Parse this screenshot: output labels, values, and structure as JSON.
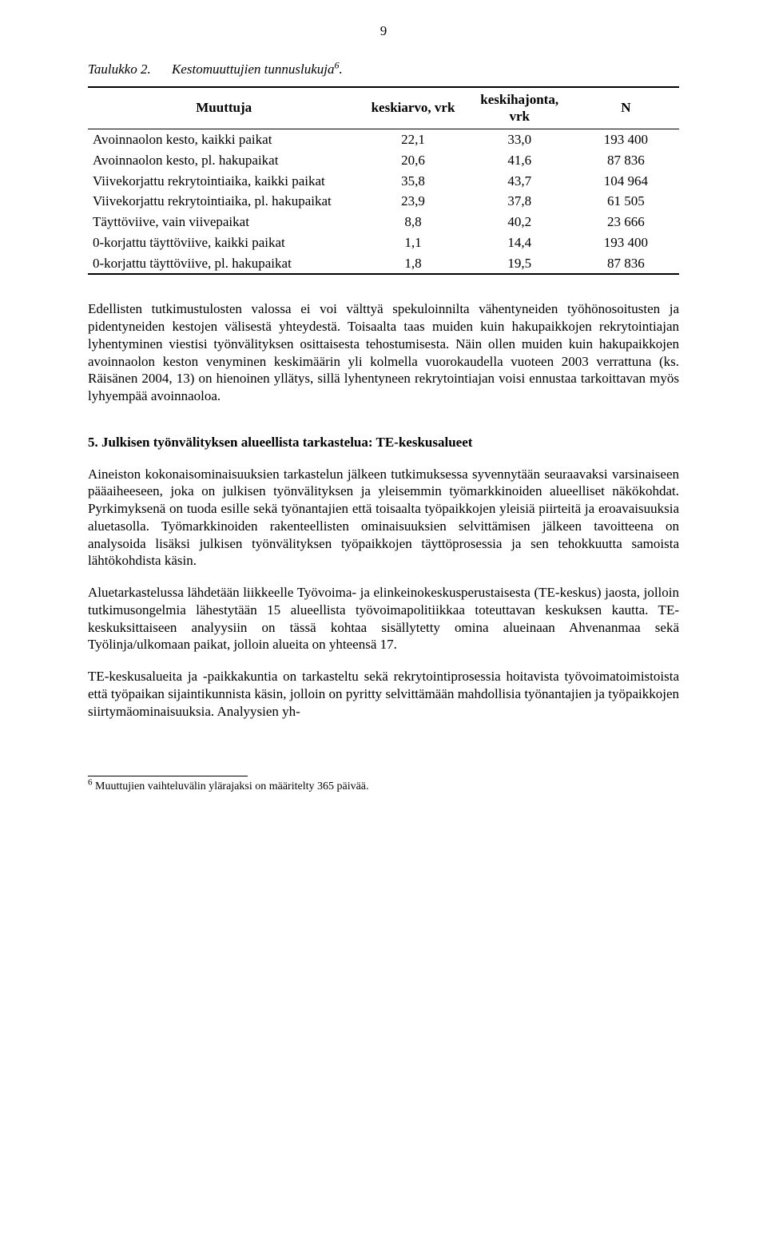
{
  "page_number": "9",
  "table_caption": {
    "label": "Taulukko 2.",
    "title": "Kestomuuttujien tunnuslukuja",
    "sup": "6",
    "period": "."
  },
  "table": {
    "columns": [
      "Muuttuja",
      "keskiarvo, vrk",
      "keskihajonta, vrk",
      "N"
    ],
    "rows": [
      {
        "var": "Avoinnaolon kesto, kaikki paikat",
        "v1": "22,1",
        "v2": "33,0",
        "v3": "193 400"
      },
      {
        "var": "Avoinnaolon kesto, pl. hakupaikat",
        "v1": "20,6",
        "v2": "41,6",
        "v3": "87 836"
      },
      {
        "var": "Viivekorjattu rekrytointiaika, kaikki paikat",
        "v1": "35,8",
        "v2": "43,7",
        "v3": "104 964"
      },
      {
        "var": "Viivekorjattu rekrytointiaika, pl. hakupaikat",
        "v1": "23,9",
        "v2": "37,8",
        "v3": "61 505"
      },
      {
        "var": "Täyttöviive, vain viivepaikat",
        "v1": "8,8",
        "v2": "40,2",
        "v3": "23 666"
      },
      {
        "var": "0-korjattu täyttöviive, kaikki paikat",
        "v1": "1,1",
        "v2": "14,4",
        "v3": "193 400"
      },
      {
        "var": "0-korjattu täyttöviive, pl. hakupaikat",
        "v1": "1,8",
        "v2": "19,5",
        "v3": "87 836"
      }
    ]
  },
  "paragraphs": {
    "p1": "Edellisten tutkimustulosten valossa ei voi välttyä spekuloinnilta vähentyneiden työhönosoitusten ja pidentyneiden kestojen välisestä yhteydestä. Toisaalta taas muiden kuin hakupaikkojen rekrytointiajan lyhentyminen viestisi työnvälityksen osittaisesta tehostumisesta. Näin ollen muiden kuin hakupaikkojen avoinnaolon keston venyminen keskimäärin yli kolmella vuorokaudella vuoteen 2003 verrattuna (ks. Räisänen 2004, 13) on hienoinen yllätys, sillä lyhentyneen rekrytointiajan voisi ennustaa tarkoittavan myös lyhyempää avoinnaoloa.",
    "p2": "Aineiston kokonaisominaisuuksien tarkastelun jälkeen tutkimuksessa syvennytään seuraavaksi varsinaiseen pääaiheeseen, joka on julkisen työnvälityksen ja yleisemmin työmarkkinoiden alueelliset näkökohdat. Pyrkimyksenä on tuoda esille sekä työnantajien että toisaalta työpaikkojen yleisiä piirteitä ja eroavaisuuksia aluetasolla. Työmarkkinoiden rakenteellisten ominaisuuksien selvittämisen jälkeen tavoitteena on analysoida lisäksi julkisen työnvälityksen työpaikkojen täyttöprosessia ja sen tehokkuutta samoista lähtökohdista käsin.",
    "p3": "Aluetarkastelussa lähdetään liikkeelle Työvoima- ja elinkeinokeskusperustaisesta (TE-keskus) jaosta, jolloin tutkimusongelmia lähestytään 15 alueellista työvoimapolitiikkaa toteuttavan keskuksen kautta. TE-keskuksittaiseen analyysiin on tässä kohtaa sisällytetty omina alueinaan Ahvenanmaa sekä Työlinja/ulkomaan paikat, jolloin alueita on yhteensä 17.",
    "p4": "TE-keskusalueita ja -paikkakuntia on tarkasteltu sekä rekrytointiprosessia hoitavista työvoimatoimistoista että työpaikan sijaintikunnista käsin, jolloin on pyritty selvittämään mahdollisia työnantajien ja työpaikkojen siirtymäominaisuuksia. Analyysien yh-"
  },
  "heading": "5. Julkisen työnvälityksen alueellista tarkastelua: TE-keskusalueet",
  "footnote": {
    "num": "6",
    "text": " Muuttujien vaihteluvälin ylärajaksi on määritelty 365 päivää."
  }
}
